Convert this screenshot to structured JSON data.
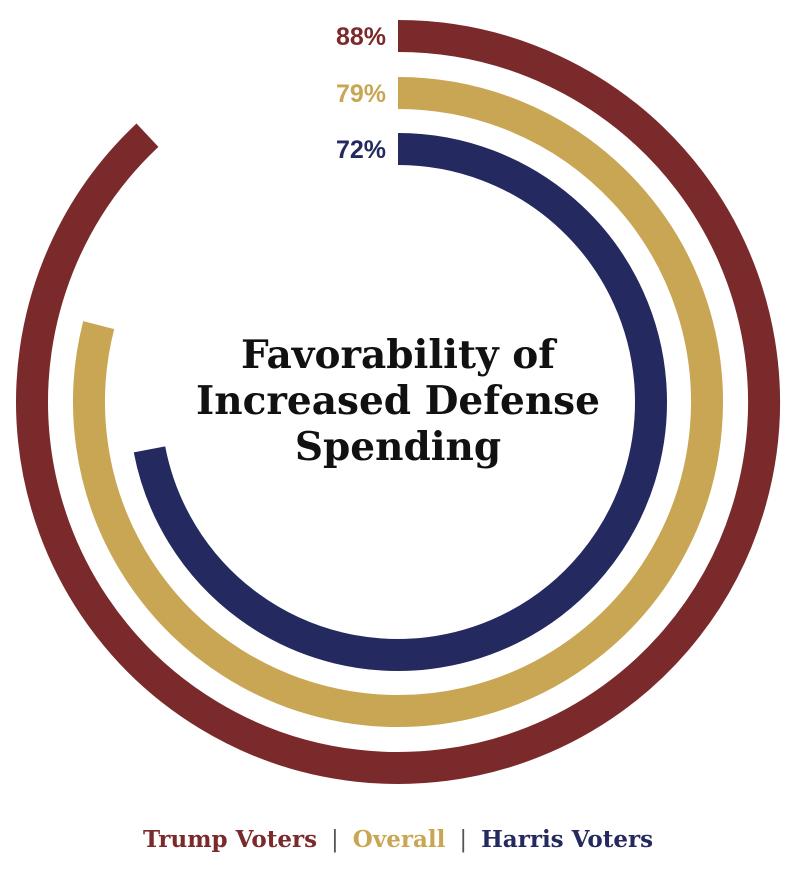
{
  "chart_data": {
    "type": "radial-bar",
    "title_lines": [
      "Favorability of",
      "Increased Defense",
      "Spending"
    ],
    "max_value": 100,
    "series": [
      {
        "name": "Trump Voters",
        "value": 88,
        "label": "88%",
        "color": "#7b2a2c"
      },
      {
        "name": "Overall",
        "value": 79,
        "label": "79%",
        "color": "#c9a654"
      },
      {
        "name": "Harris Voters",
        "value": 72,
        "label": "72%",
        "color": "#24295f"
      }
    ],
    "legend_placement": "bottom",
    "legend_separator": "|"
  }
}
